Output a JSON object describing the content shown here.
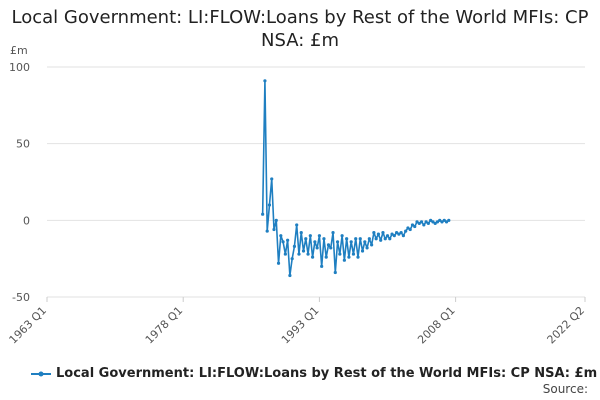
{
  "chart_data": {
    "type": "line",
    "title": "Local Government: LI:FLOW:Loans by Rest of the World MFIs: CP NSA: £m",
    "ylabel": "£m",
    "xlabel": "",
    "ylim": [
      -50,
      100
    ],
    "yticks": [
      -50,
      0,
      50,
      100
    ],
    "xlim": [
      1963.0,
      2022.25
    ],
    "xticks": [
      {
        "value": 1963.0,
        "label": "1963 Q1"
      },
      {
        "value": 1978.0,
        "label": "1978 Q1"
      },
      {
        "value": 1993.0,
        "label": "1993 Q1"
      },
      {
        "value": 2008.0,
        "label": "2008 Q1"
      },
      {
        "value": 2022.25,
        "label": "2022 Q2"
      }
    ],
    "grid": "horizontal",
    "legend_position": "bottom",
    "color": "#1f7fc1",
    "series": [
      {
        "name": "Local Government: LI:FLOW:Loans by Rest of the World MFIs: CP NSA: £m",
        "x": [
          1986.75,
          1987.0,
          1987.25,
          1987.5,
          1987.75,
          1988.0,
          1988.25,
          1988.5,
          1988.75,
          1989.0,
          1989.25,
          1989.5,
          1989.75,
          1990.0,
          1990.25,
          1990.5,
          1990.75,
          1991.0,
          1991.25,
          1991.5,
          1991.75,
          1992.0,
          1992.25,
          1992.5,
          1992.75,
          1993.0,
          1993.25,
          1993.5,
          1993.75,
          1994.0,
          1994.25,
          1994.5,
          1994.75,
          1995.0,
          1995.25,
          1995.5,
          1995.75,
          1996.0,
          1996.25,
          1996.5,
          1996.75,
          1997.0,
          1997.25,
          1997.5,
          1997.75,
          1998.0,
          1998.25,
          1998.5,
          1998.75,
          1999.0,
          1999.25,
          1999.5,
          1999.75,
          2000.0,
          2000.25,
          2000.5,
          2000.75,
          2001.0,
          2001.25,
          2001.5,
          2001.75,
          2002.0,
          2002.25,
          2002.5,
          2002.75,
          2003.0,
          2003.25,
          2003.5,
          2003.75,
          2004.0,
          2004.25,
          2004.5,
          2004.75,
          2005.0,
          2005.25,
          2005.5,
          2005.75,
          2006.0,
          2006.25,
          2006.5,
          2006.75,
          2007.0,
          2007.25
        ],
        "y": [
          4,
          91,
          -7,
          10,
          27,
          -6,
          0,
          -28,
          -10,
          -14,
          -22,
          -13,
          -36,
          -25,
          -17,
          -3,
          -22,
          -8,
          -20,
          -12,
          -22,
          -10,
          -24,
          -14,
          -18,
          -10,
          -30,
          -12,
          -24,
          -16,
          -18,
          -8,
          -34,
          -14,
          -22,
          -10,
          -26,
          -12,
          -24,
          -14,
          -22,
          -12,
          -24,
          -12,
          -20,
          -14,
          -18,
          -12,
          -16,
          -8,
          -12,
          -9,
          -13,
          -8,
          -12,
          -10,
          -12,
          -9,
          -10,
          -8,
          -9,
          -8,
          -10,
          -7,
          -5,
          -6,
          -3,
          -4,
          -1,
          -2,
          -1,
          -3,
          -1,
          -2,
          0,
          -1,
          -2,
          -1,
          0,
          -1,
          0,
          -1,
          0
        ]
      }
    ]
  },
  "source": "Source:"
}
